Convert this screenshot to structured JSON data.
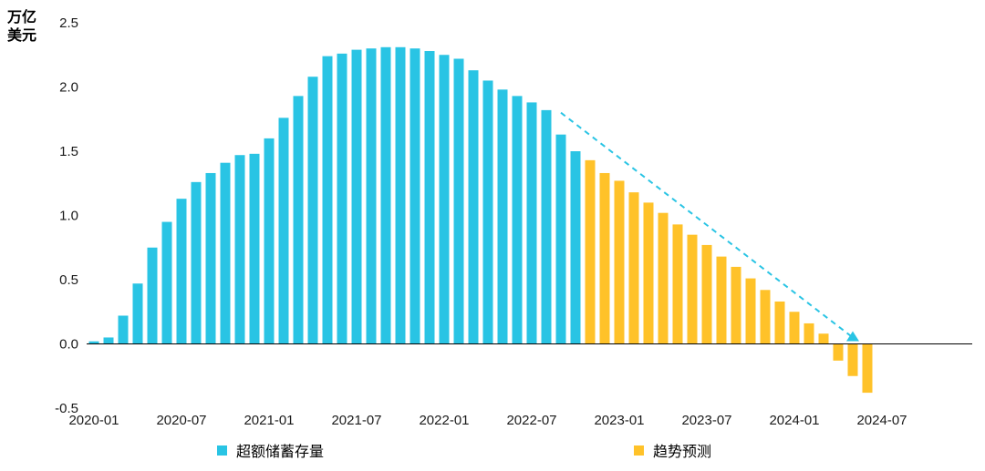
{
  "chart_data": {
    "type": "bar",
    "unit_label_line1": "万亿",
    "unit_label_line2": "美元",
    "ylabel": "万亿美元",
    "ylim": [
      -0.5,
      2.5
    ],
    "yticks": [
      2.5,
      2.0,
      1.5,
      1.0,
      0.5,
      0.0,
      -0.5
    ],
    "xticks": [
      "2020-01",
      "2020-07",
      "2021-01",
      "2021-07",
      "2022-01",
      "2022-07",
      "2023-01",
      "2023-07",
      "2024-01",
      "2024-07"
    ],
    "grid": false,
    "legend_position": "bottom",
    "series": [
      {
        "name": "超额储蓄存量",
        "color": "#29C4E4",
        "start": "2020-01",
        "values": [
          0.02,
          0.05,
          0.22,
          0.47,
          0.75,
          0.95,
          1.13,
          1.26,
          1.33,
          1.41,
          1.47,
          1.48,
          1.6,
          1.76,
          1.93,
          2.08,
          2.24,
          2.26,
          2.29,
          2.3,
          2.31,
          2.31,
          2.3,
          2.28,
          2.25,
          2.22,
          2.13,
          2.05,
          1.98,
          1.93,
          1.88,
          1.82,
          1.63,
          1.5
        ]
      },
      {
        "name": "趋势预测",
        "color": "#FFC229",
        "start": "2022-11",
        "values": [
          1.43,
          1.33,
          1.27,
          1.18,
          1.1,
          1.02,
          0.93,
          0.85,
          0.77,
          0.68,
          0.6,
          0.51,
          0.42,
          0.33,
          0.25,
          0.16,
          0.08,
          -0.13,
          -0.25,
          -0.38
        ]
      }
    ],
    "trend_line": {
      "color": "#29C4E4",
      "dashed": true,
      "from_month": "2022-09",
      "from_value": 1.8,
      "to_month": "2024-05",
      "to_value": 0.05,
      "end_marker": "triangle-up"
    }
  },
  "legend": {
    "items": [
      {
        "label": "超额储蓄存量",
        "color": "#29C4E4"
      },
      {
        "label": "趋势预测",
        "color": "#FFC229"
      }
    ]
  }
}
